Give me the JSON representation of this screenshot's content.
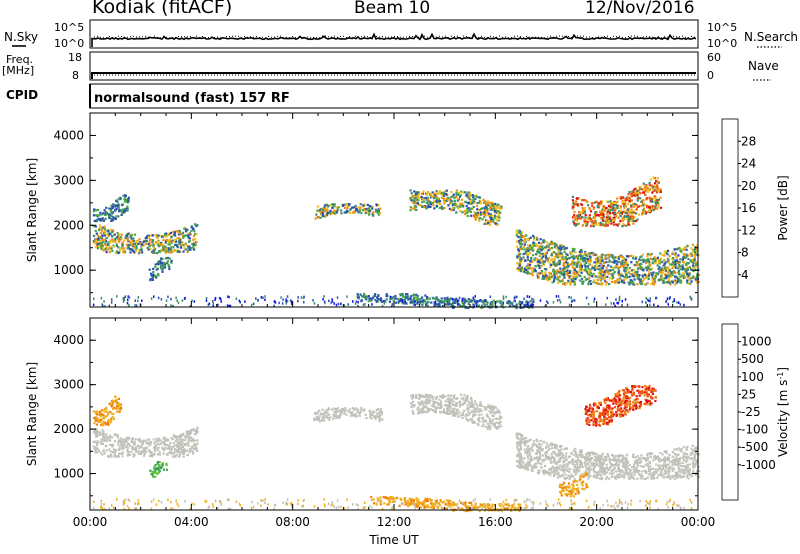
{
  "header": {
    "station": "Kodiak (fitACF)",
    "beam": "Beam 10",
    "date": "12/Nov/2016"
  },
  "top_panels": {
    "nsky_label": "N.Sky",
    "nsearch_label": "N.Search",
    "freq_label_1": "Freq.",
    "freq_label_2": "[MHz]",
    "nave_label": "Nave",
    "cpid_label": "CPID",
    "cpid_text": "normalsound (fast) 157 RF",
    "noise_ticks_left": [
      "10^5",
      "10^0"
    ],
    "noise_ticks_right": [
      "10^5",
      "10^0"
    ],
    "freq_ticks": [
      "18",
      "8"
    ],
    "nave_ticks": [
      "60",
      "0"
    ]
  },
  "colors": {
    "power_scale": [
      "#1010ee",
      "#2a4fb0",
      "#3b8a6e",
      "#46a84a",
      "#f0c020",
      "#f09010",
      "#f05010",
      "#e01010"
    ],
    "velocity_scale": [
      "#2040c0",
      "#2a6ab0",
      "#3aa050",
      "#60c040",
      "#c0c0b8",
      "#c8c8c0",
      "#f0b020",
      "#f08010",
      "#f05010",
      "#e01010"
    ]
  },
  "chart_data": [
    {
      "type": "heatmap",
      "title": "Power",
      "xlabel": "Time UT",
      "ylabel": "Slant Range [km]",
      "x_ticks": [
        "00:00",
        "04:00",
        "08:00",
        "12:00",
        "16:00",
        "20:00",
        "00:00"
      ],
      "y_ticks": [
        "1000",
        "2000",
        "3000",
        "4000"
      ],
      "xlim": [
        0,
        24
      ],
      "ylim": [
        180,
        4500
      ],
      "colorbar": {
        "label": "Power [dB]",
        "ticks": [
          "4",
          "8",
          "12",
          "16",
          "20",
          "24",
          "28"
        ]
      },
      "echo_regions": [
        {
          "t0": 0.1,
          "t1": 4.2,
          "r0": 1400,
          "r1": 2200,
          "level": "medium-high"
        },
        {
          "t0": 0.1,
          "t1": 1.5,
          "r0": 2100,
          "r1": 2700,
          "level": "medium"
        },
        {
          "t0": 2.3,
          "t1": 3.2,
          "r0": 800,
          "r1": 1300,
          "level": "medium"
        },
        {
          "t0": 8.8,
          "t1": 11.5,
          "r0": 2100,
          "r1": 2500,
          "level": "medium-high"
        },
        {
          "t0": 12.6,
          "t1": 16.2,
          "r0": 2000,
          "r1": 2800,
          "level": "medium-high"
        },
        {
          "t0": 10.5,
          "t1": 17.5,
          "r0": 180,
          "r1": 500,
          "level": "medium"
        },
        {
          "t0": 16.8,
          "t1": 24.0,
          "r0": 700,
          "r1": 2000,
          "level": "medium-high"
        },
        {
          "t0": 19.0,
          "t1": 22.5,
          "r0": 2000,
          "r1": 3100,
          "level": "high"
        }
      ]
    },
    {
      "type": "heatmap",
      "title": "Velocity",
      "xlabel": "Time UT",
      "ylabel": "Slant Range [km]",
      "x_ticks": [
        "00:00",
        "04:00",
        "08:00",
        "12:00",
        "16:00",
        "20:00",
        "00:00"
      ],
      "y_ticks": [
        "1000",
        "2000",
        "3000",
        "4000"
      ],
      "xlim": [
        0,
        24
      ],
      "ylim": [
        180,
        4500
      ],
      "colorbar": {
        "label": "Velocity [m s^-1]",
        "ticks": [
          "1000",
          "500",
          "100",
          "25",
          "-25",
          "-100",
          "-500",
          "-1000"
        ]
      },
      "echo_regions": [
        {
          "t0": 0.1,
          "t1": 4.2,
          "r0": 1400,
          "r1": 2200,
          "level": "ground-scatter"
        },
        {
          "t0": 0.1,
          "t1": 1.2,
          "r0": 2100,
          "r1": 2800,
          "level": "negative"
        },
        {
          "t0": 2.3,
          "t1": 3.0,
          "r0": 900,
          "r1": 1300,
          "level": "positive"
        },
        {
          "t0": 8.8,
          "t1": 11.5,
          "r0": 2100,
          "r1": 2500,
          "level": "ground-scatter"
        },
        {
          "t0": 12.6,
          "t1": 16.2,
          "r0": 2000,
          "r1": 2800,
          "level": "ground-scatter"
        },
        {
          "t0": 11.0,
          "t1": 17.0,
          "r0": 180,
          "r1": 500,
          "level": "negative"
        },
        {
          "t0": 16.8,
          "t1": 24.0,
          "r0": 900,
          "r1": 2000,
          "level": "ground-scatter"
        },
        {
          "t0": 18.5,
          "t1": 19.6,
          "r0": 500,
          "r1": 1100,
          "level": "negative"
        },
        {
          "t0": 19.5,
          "t1": 22.3,
          "r0": 2100,
          "r1": 3000,
          "level": "strong-negative"
        }
      ]
    }
  ]
}
